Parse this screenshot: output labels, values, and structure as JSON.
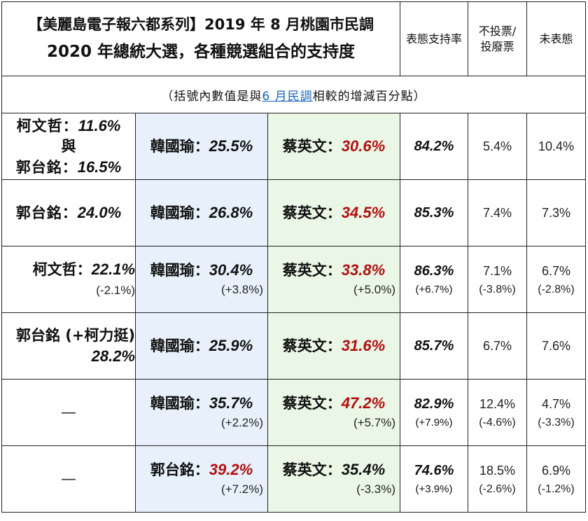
{
  "title": {
    "line1": "【美麗島電子報六都系列】2019 年 8 月桃園市民調",
    "line2": "2020 年總統大選，各種競選組合的支持度"
  },
  "headers": {
    "support": "表態支持率",
    "novote_1": "不投票/",
    "novote_2": "投廢票",
    "undecided": "未表態"
  },
  "note": {
    "prefix": "（括號內數值是與",
    "link": "6 月民調",
    "suffix": "相較的增減百分點）"
  },
  "rows": [
    {
      "third": {
        "line1_name": "柯文哲：",
        "line1_pct": "11.6%",
        "line2": "與",
        "line3_name": "郭台銘：",
        "line3_pct": "16.5%",
        "delta": ""
      },
      "han": {
        "name": "韓國瑜：",
        "pct": "25.5%",
        "delta": ""
      },
      "tsai": {
        "name": "蔡英文：",
        "pct": "30.6%",
        "delta": ""
      },
      "support": {
        "value": "84.2%",
        "delta": ""
      },
      "novote": {
        "value": "5.4%",
        "delta": ""
      },
      "undecided": {
        "value": "10.4%",
        "delta": ""
      }
    },
    {
      "third": {
        "name": "郭台銘：",
        "pct": "24.0%",
        "delta": ""
      },
      "han": {
        "name": "韓國瑜：",
        "pct": "26.8%",
        "delta": ""
      },
      "tsai": {
        "name": "蔡英文：",
        "pct": "34.5%",
        "delta": ""
      },
      "support": {
        "value": "85.3%",
        "delta": ""
      },
      "novote": {
        "value": "7.4%",
        "delta": ""
      },
      "undecided": {
        "value": "7.3%",
        "delta": ""
      }
    },
    {
      "third": {
        "name": "柯文哲：",
        "pct": "22.1%",
        "delta": "(-2.1%)"
      },
      "han": {
        "name": "韓國瑜：",
        "pct": "30.4%",
        "delta": "(+3.8%)"
      },
      "tsai": {
        "name": "蔡英文：",
        "pct": "33.8%",
        "delta": "(+5.0%)"
      },
      "support": {
        "value": "86.3%",
        "delta": "(+6.7%)"
      },
      "novote": {
        "value": "7.1%",
        "delta": "(-3.8%)"
      },
      "undecided": {
        "value": "6.7%",
        "delta": "(-2.8%)"
      }
    },
    {
      "third": {
        "line1": "郭台銘 (+柯力挺)",
        "pct": "28.2%"
      },
      "han": {
        "name": "韓國瑜：",
        "pct": "25.9%",
        "delta": ""
      },
      "tsai": {
        "name": "蔡英文：",
        "pct": "31.6%",
        "delta": ""
      },
      "support": {
        "value": "85.7%",
        "delta": ""
      },
      "novote": {
        "value": "6.7%",
        "delta": ""
      },
      "undecided": {
        "value": "7.6%",
        "delta": ""
      }
    },
    {
      "third": {
        "dash": "—"
      },
      "han": {
        "name": "韓國瑜：",
        "pct": "35.7%",
        "delta": "(+2.2%)"
      },
      "tsai": {
        "name": "蔡英文：",
        "pct": "47.2%",
        "delta": "(+5.7%)"
      },
      "support": {
        "value": "82.9%",
        "delta": "(+7.9%)"
      },
      "novote": {
        "value": "12.4%",
        "delta": "(-4.6%)"
      },
      "undecided": {
        "value": "4.7%",
        "delta": "(-3.3%)"
      }
    },
    {
      "third": {
        "dash": "—"
      },
      "han": {
        "name": "郭台銘：",
        "pct": "39.2%",
        "delta": "(+7.2%)"
      },
      "tsai": {
        "name": "蔡英文：",
        "pct": "35.4%",
        "delta": "(-3.3%)"
      },
      "support": {
        "value": "74.6%",
        "delta": "(+3.9%)"
      },
      "novote": {
        "value": "18.5%",
        "delta": "(-2.6%)"
      },
      "undecided": {
        "value": "6.9%",
        "delta": "(-1.2%)"
      }
    }
  ],
  "colors": {
    "blue_column": "#e8f1fb",
    "green_column": "#eaf7e6",
    "winner_red": "#b30f0f",
    "link_blue": "#1565c0"
  }
}
